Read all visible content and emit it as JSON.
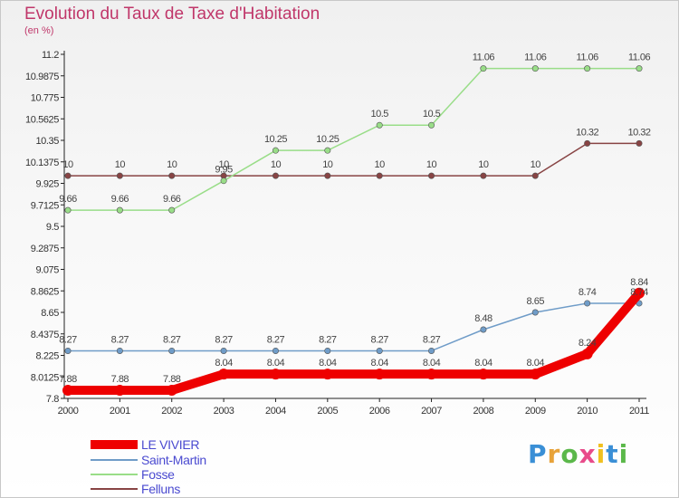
{
  "header": {
    "title": "Evolution du Taux de Taxe d'Habitation",
    "unit": "(en %)"
  },
  "logo": {
    "letters": [
      "P",
      "r",
      "o",
      "x",
      "i",
      "t",
      "i"
    ],
    "colors": [
      "#3a8fd6",
      "#e8a33a",
      "#5bb84a",
      "#e84b8a",
      "#f0c020",
      "#3a8fd6",
      "#5bb84a"
    ]
  },
  "chart_data": {
    "type": "line",
    "title": "Evolution du Taux de Taxe d'Habitation",
    "ylabel": "(en %)",
    "xlabel": "",
    "x": [
      "2000",
      "2001",
      "2002",
      "2003",
      "2004",
      "2005",
      "2006",
      "2007",
      "2008",
      "2009",
      "2010",
      "2011"
    ],
    "ylim": [
      7.8,
      11.2
    ],
    "yticks": [
      "11.2",
      "10.9875",
      "10.775",
      "10.5625",
      "10.35",
      "10.1375",
      "9.925",
      "9.7125",
      "9.5",
      "9.2875",
      "9.075",
      "8.8625",
      "8.65",
      "8.4375",
      "8.225",
      "8.0125",
      "7.8"
    ],
    "grid": false,
    "legend_position": "bottom-left",
    "series": [
      {
        "name": "LE VIVIER",
        "color": "#ee0000",
        "width": 10,
        "values": [
          7.88,
          7.88,
          7.88,
          8.04,
          8.04,
          8.04,
          8.04,
          8.04,
          8.04,
          8.04,
          8.24,
          8.84
        ],
        "labels": [
          "7.88",
          "7.88",
          "7.88",
          "8.04",
          "8.04",
          "8.04",
          "8.04",
          "8.04",
          "8.04",
          "8.04",
          "8.24",
          "8.84"
        ]
      },
      {
        "name": "Saint-Martin",
        "color": "#6f9cc8",
        "width": 1.5,
        "values": [
          8.27,
          8.27,
          8.27,
          8.27,
          8.27,
          8.27,
          8.27,
          8.27,
          8.48,
          8.65,
          8.74,
          8.74
        ],
        "labels": [
          "8.27",
          "8.27",
          "8.27",
          "8.27",
          "8.27",
          "8.27",
          "8.27",
          "8.27",
          "8.48",
          "8.65",
          "8.74",
          "8.74"
        ]
      },
      {
        "name": "Fosse",
        "color": "#99dd88",
        "width": 1.5,
        "values": [
          9.66,
          9.66,
          9.66,
          9.95,
          10.25,
          10.25,
          10.5,
          10.5,
          11.06,
          11.06,
          11.06,
          11.06
        ],
        "labels": [
          "9.66",
          "9.66",
          "9.66",
          "9.95",
          "10.25",
          "10.25",
          "10.5",
          "10.5",
          "11.06",
          "11.06",
          "11.06",
          "11.06"
        ]
      },
      {
        "name": "Felluns",
        "color": "#884444",
        "width": 1.5,
        "values": [
          10,
          10,
          10,
          10,
          10,
          10,
          10,
          10,
          10,
          10,
          10.32,
          10.32
        ],
        "labels": [
          "10",
          "10",
          "10",
          "10",
          "10",
          "10",
          "10",
          "10",
          "10",
          "10",
          "10.32",
          "10.32"
        ]
      }
    ]
  }
}
